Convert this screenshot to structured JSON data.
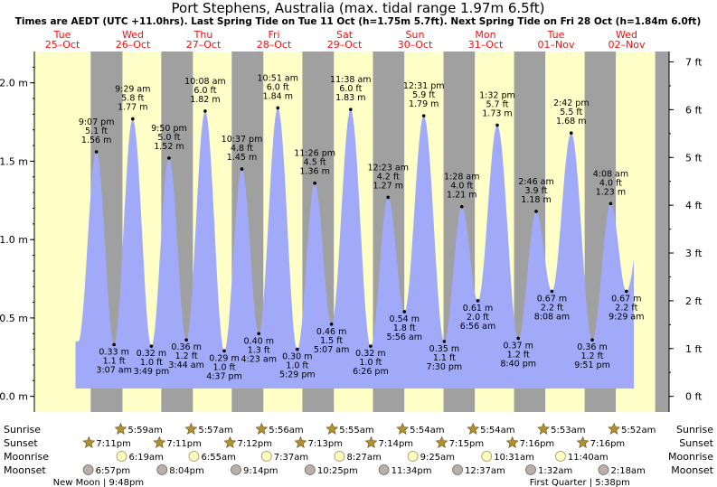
{
  "title": "Port Stephens, Australia (max. tidal range 1.97m 6.5ft)",
  "subtitle": "Times are AEDT (UTC +11.0hrs). Last Spring Tide on Tue 11 Oct (h=1.75m 5.7ft). Next Spring Tide on Fri 28 Oct (h=1.84m 6.0ft)",
  "colors": {
    "day": "#ffffc8",
    "night": "#a0a0a0",
    "water": "#a0aaf8",
    "date_text": "#ee1111",
    "text": "#000000"
  },
  "chart_data": {
    "type": "area",
    "days": [
      {
        "dow": "Tue",
        "date": "25–Oct"
      },
      {
        "dow": "Wed",
        "date": "26–Oct"
      },
      {
        "dow": "Thu",
        "date": "27–Oct"
      },
      {
        "dow": "Fri",
        "date": "28–Oct"
      },
      {
        "dow": "Sat",
        "date": "29–Oct"
      },
      {
        "dow": "Sun",
        "date": "30–Oct"
      },
      {
        "dow": "Mon",
        "date": "31–Oct"
      },
      {
        "dow": "Tue",
        "date": "01–Nov"
      },
      {
        "dow": "Wed",
        "date": "02–Nov"
      }
    ],
    "y_left": {
      "unit": "m",
      "range": [
        -0.1,
        2.2
      ],
      "ticks": [
        "0.0 m",
        "0.5 m",
        "1.0 m",
        "1.5 m",
        "2.0 m"
      ],
      "tick_values": [
        0,
        0.5,
        1.0,
        1.5,
        2.0
      ]
    },
    "y_right": {
      "unit": "ft",
      "ticks": [
        "0 ft",
        "1 ft",
        "2 ft",
        "3 ft",
        "4 ft",
        "5 ft",
        "6 ft",
        "7 ft"
      ],
      "tick_values": [
        0,
        1,
        2,
        3,
        4,
        5,
        6,
        7
      ]
    },
    "x_range_hours": [
      0,
      216
    ],
    "tides": [
      {
        "t": 21.12,
        "type": "high",
        "time": "9:07 pm",
        "ft": "5.1 ft",
        "m": "1.56 m",
        "h": 1.56
      },
      {
        "t": 27.12,
        "type": "low",
        "time": "3:07 am",
        "ft": "1.1 ft",
        "m": "0.33 m",
        "h": 0.33
      },
      {
        "t": 33.48,
        "type": "high",
        "time": "9:29 am",
        "ft": "5.8 ft",
        "m": "1.77 m",
        "h": 1.77
      },
      {
        "t": 39.82,
        "type": "low",
        "time": "3:49 pm",
        "ft": "1.0 ft",
        "m": "0.32 m",
        "h": 0.32
      },
      {
        "t": 45.83,
        "type": "high",
        "time": "9:50 pm",
        "ft": "5.0 ft",
        "m": "1.52 m",
        "h": 1.52
      },
      {
        "t": 51.73,
        "type": "low",
        "time": "3:44 am",
        "ft": "1.2 ft",
        "m": "0.36 m",
        "h": 0.36
      },
      {
        "t": 58.13,
        "type": "high",
        "time": "10:08 am",
        "ft": "6.0 ft",
        "m": "1.82 m",
        "h": 1.82
      },
      {
        "t": 64.62,
        "type": "low",
        "time": "4:37 pm",
        "ft": "1.0 ft",
        "m": "0.29 m",
        "h": 0.29
      },
      {
        "t": 70.62,
        "type": "high",
        "time": "10:37 pm",
        "ft": "4.8 ft",
        "m": "1.45 m",
        "h": 1.45
      },
      {
        "t": 76.38,
        "type": "low",
        "time": "4:23 am",
        "ft": "1.3 ft",
        "m": "0.40 m",
        "h": 0.4
      },
      {
        "t": 82.85,
        "type": "high",
        "time": "10:51 am",
        "ft": "6.0 ft",
        "m": "1.84 m",
        "h": 1.84
      },
      {
        "t": 89.48,
        "type": "low",
        "time": "5:29 pm",
        "ft": "1.0 ft",
        "m": "0.30 m",
        "h": 0.3
      },
      {
        "t": 95.43,
        "type": "high",
        "time": "11:26 pm",
        "ft": "4.5 ft",
        "m": "1.36 m",
        "h": 1.36
      },
      {
        "t": 101.12,
        "type": "low",
        "time": "5:07 am",
        "ft": "1.5 ft",
        "m": "0.46 m",
        "h": 0.46
      },
      {
        "t": 107.63,
        "type": "high",
        "time": "11:38 am",
        "ft": "6.0 ft",
        "m": "1.83 m",
        "h": 1.83
      },
      {
        "t": 114.43,
        "type": "low",
        "time": "6:26 pm",
        "ft": "1.0 ft",
        "m": "0.32 m",
        "h": 0.32
      },
      {
        "t": 120.38,
        "type": "high",
        "time": "12:23 am",
        "ft": "4.2 ft",
        "m": "1.27 m",
        "h": 1.27
      },
      {
        "t": 125.93,
        "type": "low",
        "time": "5:56 am",
        "ft": "1.8 ft",
        "m": "0.54 m",
        "h": 0.54
      },
      {
        "t": 132.52,
        "type": "high",
        "time": "12:31 pm",
        "ft": "5.9 ft",
        "m": "1.79 m",
        "h": 1.79
      },
      {
        "t": 139.5,
        "type": "low",
        "time": "7:30 pm",
        "ft": "1.1 ft",
        "m": "0.35 m",
        "h": 0.35
      },
      {
        "t": 145.47,
        "type": "high",
        "time": "1:28 am",
        "ft": "4.0 ft",
        "m": "1.21 m",
        "h": 1.21
      },
      {
        "t": 150.93,
        "type": "low",
        "time": "6:56 am",
        "ft": "2.0 ft",
        "m": "0.61 m",
        "h": 0.61
      },
      {
        "t": 157.53,
        "type": "high",
        "time": "1:32 pm",
        "ft": "5.7 ft",
        "m": "1.73 m",
        "h": 1.73
      },
      {
        "t": 164.67,
        "type": "low",
        "time": "8:40 pm",
        "ft": "1.2 ft",
        "m": "0.37 m",
        "h": 0.37
      },
      {
        "t": 170.77,
        "type": "high",
        "time": "2:46 am",
        "ft": "3.9 ft",
        "m": "1.18 m",
        "h": 1.18
      },
      {
        "t": 176.13,
        "type": "low",
        "time": "8:08 am",
        "ft": "2.2 ft",
        "m": "0.67 m",
        "h": 0.67
      },
      {
        "t": 182.7,
        "type": "high",
        "time": "2:42 pm",
        "ft": "5.5 ft",
        "m": "1.68 m",
        "h": 1.68
      },
      {
        "t": 189.85,
        "type": "low",
        "time": "9:51 pm",
        "ft": "1.2 ft",
        "m": "0.36 m",
        "h": 0.36
      },
      {
        "t": 196.13,
        "type": "high",
        "time": "4:08 am",
        "ft": "4.0 ft",
        "m": "1.23 m",
        "h": 1.23
      },
      {
        "t": 201.48,
        "type": "low",
        "time": "9:29 am",
        "ft": "2.2 ft",
        "m": "0.67 m",
        "h": 0.67
      }
    ],
    "sun_days": [
      {
        "rise": "5:59am",
        "set": "7:11pm",
        "rise_t": 29.98,
        "set_t": 43.18
      },
      {
        "rise": "5:57am",
        "set": "7:11pm",
        "rise_t": 53.95,
        "set_t": 67.18
      },
      {
        "rise": "5:56am",
        "set": "7:12pm",
        "rise_t": 77.93,
        "set_t": 91.2
      },
      {
        "rise": "5:55am",
        "set": "7:13pm",
        "rise_t": 101.92,
        "set_t": 115.22
      },
      {
        "rise": "5:54am",
        "set": "7:14pm",
        "rise_t": 125.9,
        "set_t": 139.23
      },
      {
        "rise": "5:54am",
        "set": "7:15pm",
        "rise_t": 149.9,
        "set_t": 163.25
      },
      {
        "rise": "5:53am",
        "set": "7:16pm",
        "rise_t": 173.88,
        "set_t": 187.27
      },
      {
        "rise": "5:52am",
        "set": "7:16pm",
        "rise_t": 197.87,
        "set_t": 211.27
      }
    ],
    "sunset_first_t": 19.17,
    "sun_rows": {
      "sunrise": [
        {
          "t": 29.98,
          "label": "5:59am"
        },
        {
          "t": 53.95,
          "label": "5:57am"
        },
        {
          "t": 77.93,
          "label": "5:56am"
        },
        {
          "t": 101.92,
          "label": "5:55am"
        },
        {
          "t": 125.9,
          "label": "5:54am"
        },
        {
          "t": 149.9,
          "label": "5:54am"
        },
        {
          "t": 173.88,
          "label": "5:53am"
        },
        {
          "t": 197.87,
          "label": "5:52am"
        }
      ],
      "sunset": [
        {
          "t": 19.17,
          "label": "7:11pm"
        },
        {
          "t": 43.18,
          "label": "7:11pm"
        },
        {
          "t": 67.2,
          "label": "7:12pm"
        },
        {
          "t": 91.22,
          "label": "7:13pm"
        },
        {
          "t": 115.23,
          "label": "7:14pm"
        },
        {
          "t": 139.25,
          "label": "7:15pm"
        },
        {
          "t": 163.27,
          "label": "7:16pm"
        },
        {
          "t": 187.27,
          "label": "7:16pm"
        }
      ],
      "moonrise": [
        {
          "t": 30.32,
          "label": "6:19am"
        },
        {
          "t": 54.92,
          "label": "6:55am"
        },
        {
          "t": 79.62,
          "label": "7:37am"
        },
        {
          "t": 104.45,
          "label": "8:27am"
        },
        {
          "t": 129.42,
          "label": "9:25am"
        },
        {
          "t": 154.52,
          "label": "10:31am"
        },
        {
          "t": 179.67,
          "label": "11:40am"
        }
      ],
      "moonset": [
        {
          "t": 18.95,
          "label": "6:57pm"
        },
        {
          "t": 44.07,
          "label": "8:04pm"
        },
        {
          "t": 69.23,
          "label": "9:14pm"
        },
        {
          "t": 94.42,
          "label": "10:25pm"
        },
        {
          "t": 119.57,
          "label": "11:34pm"
        },
        {
          "t": 144.62,
          "label": "12:37am"
        },
        {
          "t": 169.53,
          "label": "1:32am"
        },
        {
          "t": 194.3,
          "label": "2:18am"
        }
      ]
    },
    "row_labels": [
      "Sunrise",
      "Sunset",
      "Moonrise",
      "Moonset"
    ],
    "moon_phases": [
      {
        "label": "New Moon",
        "time": "9:48pm",
        "t": 21.8
      },
      {
        "label": "First Quarter",
        "time": "5:38pm",
        "t": 185.63
      }
    ]
  }
}
